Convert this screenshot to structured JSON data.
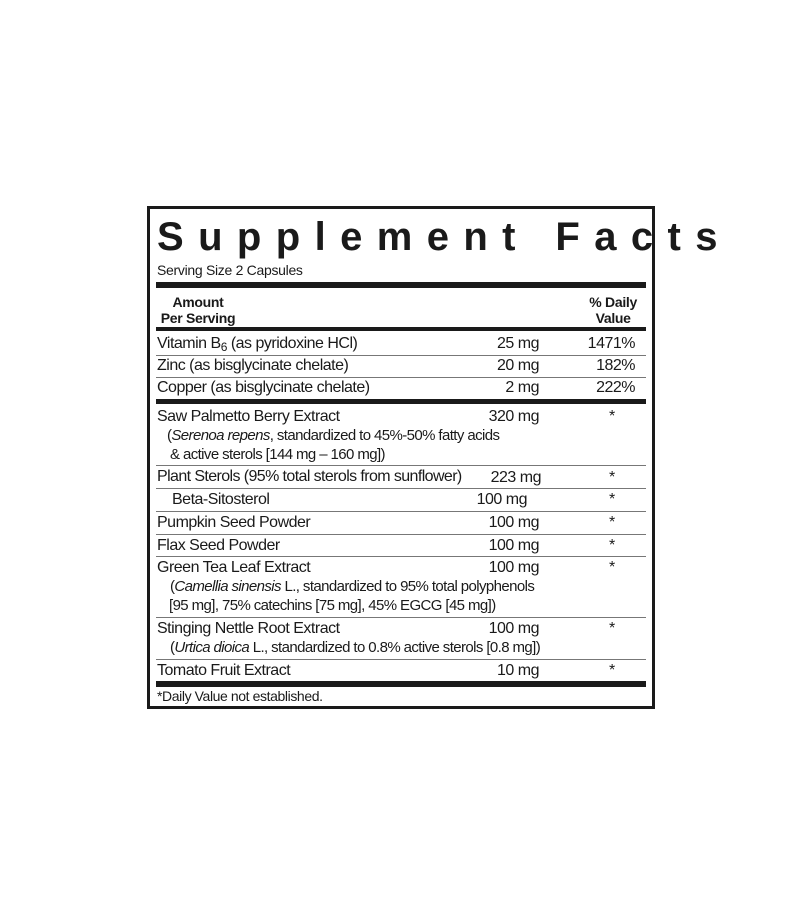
{
  "title": "Supplement Facts",
  "serving_size": "Serving Size 2 Capsules",
  "header": {
    "amount_line1": "Amount",
    "amount_line2": "Per Serving",
    "dv_line1": "% Daily",
    "dv_line2": "Value"
  },
  "vitamins": [
    {
      "name_pre": "Vitamin B",
      "name_sub": "6",
      "name_post": " (as pyridoxine HCl)",
      "amount": "25 mg",
      "dv": "1471%"
    },
    {
      "name": "Zinc (as bisglycinate chelate)",
      "amount": "20 mg",
      "dv": "182%"
    },
    {
      "name": "Copper (as bisglycinate chelate)",
      "amount": "2 mg",
      "dv": "222%"
    }
  ],
  "ingredients": [
    {
      "name": "Saw Palmetto Berry Extract",
      "amount": "320 mg",
      "dv": "*",
      "sub_italic": "Serenoa repens",
      "sub_rest": ", standardized to 45%-50% fatty acids",
      "sub_line2": "& active sterols [144 mg – 160 mg])"
    },
    {
      "name": "Plant Sterols (95% total sterols from sunflower)",
      "amount": "223 mg",
      "dv": "*"
    },
    {
      "name": "Beta-Sitosterol",
      "amount": "100 mg",
      "dv": "*"
    },
    {
      "name": "Pumpkin Seed Powder",
      "amount": "100 mg",
      "dv": "*"
    },
    {
      "name": "Flax Seed Powder",
      "amount": "100 mg",
      "dv": "*"
    },
    {
      "name": "Green Tea Leaf Extract",
      "amount": "100 mg",
      "dv": "*",
      "sub_italic": "Camellia sinensis",
      "sub_rest": " L., standardized to 95% total polyphenols",
      "sub_line2": "[95 mg], 75% catechins [75 mg], 45% EGCG [45 mg])"
    },
    {
      "name": "Stinging Nettle Root Extract",
      "amount": "100 mg",
      "dv": "*",
      "sub_italic": "Urtica dioica",
      "sub_rest": " L., standardized to 0.8% active sterols [0.8 mg])"
    },
    {
      "name": "Tomato Fruit Extract",
      "amount": "10 mg",
      "dv": "*"
    }
  ],
  "paren_open": "(",
  "footnote": "*Daily Value not established."
}
